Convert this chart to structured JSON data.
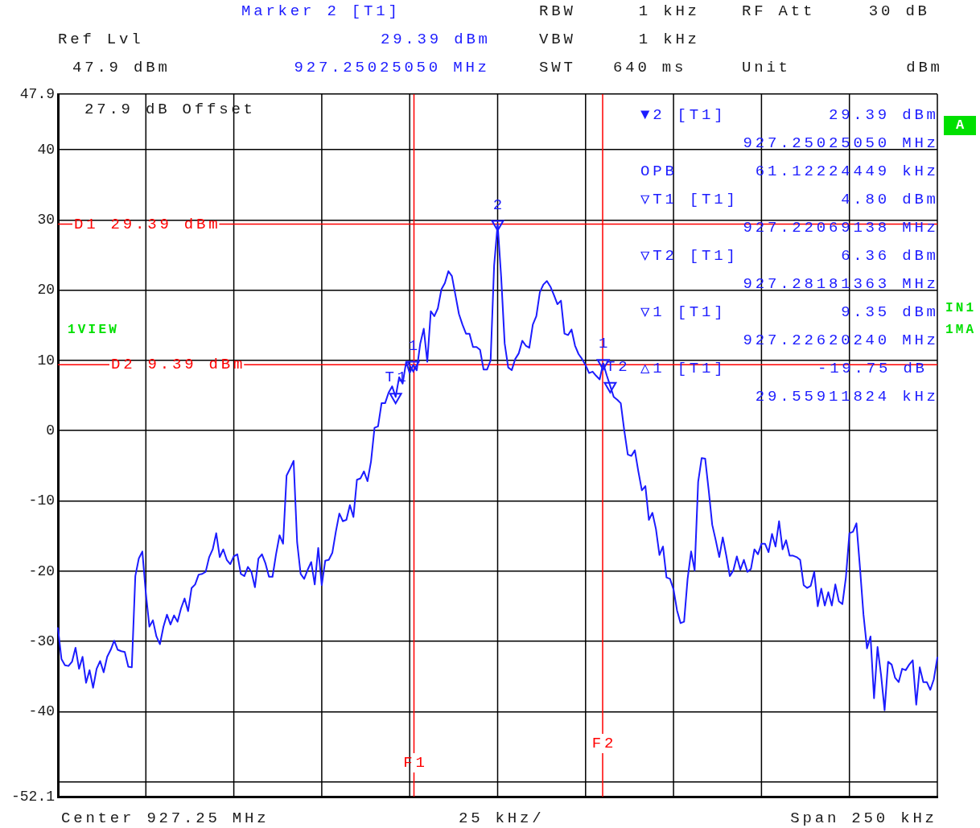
{
  "chart_data": {
    "type": "line",
    "categories": [
      null,
      null,
      null,
      null,
      null,
      null,
      null,
      null,
      null,
      null,
      null,
      null,
      null,
      null,
      null,
      null,
      null,
      null,
      null,
      null,
      null,
      null,
      null,
      null,
      null,
      null,
      null,
      null,
      null,
      null,
      null,
      null,
      null,
      null,
      null,
      null,
      null,
      null,
      null,
      null,
      null,
      null,
      null,
      null,
      null,
      null,
      null,
      null,
      null,
      null,
      null,
      null,
      null,
      null,
      null,
      null,
      null,
      null,
      null,
      null,
      null,
      null,
      null,
      null,
      null,
      null,
      null,
      null,
      null,
      null,
      null,
      null,
      null,
      null,
      null,
      null,
      null,
      null,
      null,
      null,
      null,
      null,
      null,
      null,
      null,
      null,
      null,
      null,
      null,
      null,
      null,
      null,
      null,
      null,
      null,
      null,
      null,
      null,
      null,
      null,
      null,
      null,
      null,
      null,
      null,
      null,
      null,
      null,
      null,
      null,
      null,
      null,
      null,
      null,
      null,
      null,
      null,
      null,
      null,
      null,
      null,
      null,
      null,
      null,
      null,
      null,
      null,
      null,
      null,
      null,
      null,
      null,
      null,
      null,
      null,
      null,
      null,
      null,
      null,
      null,
      null,
      null,
      null,
      null,
      null,
      null,
      null,
      null,
      null,
      null,
      null,
      null,
      null,
      null,
      null,
      null,
      null,
      null,
      null,
      null,
      null,
      null,
      null,
      null,
      null,
      null,
      null,
      null,
      null,
      null,
      null,
      null,
      null,
      null,
      null,
      null,
      null,
      null,
      null,
      null,
      null,
      null,
      null,
      null,
      null,
      null,
      null,
      null,
      null,
      null,
      null,
      null,
      null,
      null,
      null,
      null,
      null,
      null,
      null,
      null,
      null,
      null,
      null,
      null,
      null,
      null,
      null,
      null,
      null,
      null,
      null,
      null,
      null,
      null,
      null,
      null,
      null,
      null,
      null,
      null,
      null,
      null,
      null,
      null,
      null,
      null,
      null,
      null,
      null,
      null,
      null,
      null,
      null,
      null,
      null,
      null,
      null,
      null,
      null,
      null,
      null,
      null,
      null,
      null,
      null,
      null,
      null,
      null,
      null,
      null,
      null
    ],
    "series": [
      {
        "type": "line",
        "color": "#1c1cff",
        "values": [
          -28.1,
          -32.5,
          -33.4,
          -33.5,
          -32.9,
          -30.9,
          -33.9,
          -32.2,
          -35.9,
          -34.1,
          -36.6,
          -33.9,
          -32.8,
          -34.4,
          -32.2,
          -31.2,
          -29.9,
          -31.2,
          -31.4,
          -31.5,
          -33.6,
          -33.7,
          -20.7,
          -18.2,
          -17.2,
          -23.2,
          -27.9,
          -27.0,
          -29.3,
          -30.4,
          -27.9,
          -26.2,
          -27.6,
          -26.3,
          -27.2,
          -25.3,
          -23.9,
          -25.7,
          -22.4,
          -21.9,
          -20.5,
          -20.4,
          -20.1,
          -18.0,
          -16.9,
          -14.6,
          -18.0,
          -16.9,
          -18.4,
          -19.0,
          -17.9,
          -17.6,
          -20.4,
          -20.7,
          -19.4,
          -20.1,
          -22.3,
          -18.2,
          -17.6,
          -18.9,
          -20.8,
          -20.8,
          -17.6,
          -14.9,
          -16.1,
          -6.4,
          -5.4,
          -4.3,
          -15.9,
          -20.4,
          -21.1,
          -19.8,
          -18.7,
          -21.9,
          -16.7,
          -22.0,
          -18.5,
          -18.4,
          -17.4,
          -14.4,
          -11.8,
          -12.9,
          -12.7,
          -10.6,
          -12.3,
          -7.0,
          -6.8,
          -5.8,
          -7.2,
          -4.4,
          0.4,
          0.6,
          3.9,
          3.9,
          5.4,
          6.3,
          4.8,
          7.6,
          6.7,
          9.8,
          8.2,
          9.35,
          8.6,
          12.4,
          14.5,
          9.8,
          17.0,
          16.3,
          17.4,
          20.1,
          21.0,
          22.7,
          22.0,
          19.3,
          16.6,
          15.1,
          13.8,
          13.8,
          11.9,
          11.9,
          11.5,
          8.7,
          8.7,
          10.0,
          23.5,
          29.39,
          21.9,
          12.4,
          9.0,
          8.6,
          10.2,
          11.0,
          12.8,
          12.1,
          11.8,
          15.1,
          16.3,
          19.7,
          20.8,
          21.3,
          20.5,
          19.3,
          18.0,
          18.5,
          13.8,
          13.6,
          14.4,
          12.1,
          10.9,
          10.2,
          9.3,
          8.2,
          8.4,
          7.8,
          7.3,
          9.6,
          7.9,
          6.36,
          4.8,
          4.4,
          3.9,
          0.0,
          -3.4,
          -3.6,
          -2.8,
          -5.8,
          -8.5,
          -7.9,
          -12.7,
          -11.7,
          -14.0,
          -17.7,
          -16.5,
          -20.9,
          -21.1,
          -22.6,
          -25.6,
          -27.4,
          -27.2,
          -21.1,
          -17.2,
          -19.9,
          -7.3,
          -3.9,
          -4.0,
          -8.5,
          -13.4,
          -15.6,
          -18.0,
          -15.2,
          -17.8,
          -20.7,
          -19.9,
          -17.9,
          -19.8,
          -18.4,
          -20.1,
          -19.7,
          -16.9,
          -17.6,
          -16.1,
          -16.1,
          -17.3,
          -14.7,
          -16.5,
          -12.9,
          -16.9,
          -15.6,
          -17.8,
          -17.8,
          -18.0,
          -18.4,
          -22.0,
          -22.4,
          -22.1,
          -20.1,
          -25.0,
          -22.5,
          -24.9,
          -23.0,
          -24.9,
          -21.9,
          -24.3,
          -24.7,
          -20.9,
          -14.6,
          -14.4,
          -13.2,
          -19.5,
          -26.2,
          -31.0,
          -29.3,
          -38.1,
          -30.8,
          -34.8,
          -39.8,
          -32.9,
          -33.3,
          -35.2,
          -35.8,
          -33.9,
          -34.1,
          -33.3,
          -32.7,
          -39.0,
          -33.7,
          -35.8,
          -35.8,
          -36.9,
          -35.4,
          -32.3
        ]
      },
      {
        "type": "scatter",
        "color": "#1c1cff",
        "marker": "triangle",
        "values": [
          null,
          null,
          null,
          null,
          null,
          null,
          null,
          null,
          null,
          null,
          null,
          null,
          null,
          null,
          null,
          null,
          null,
          null,
          null,
          null,
          null,
          null,
          null,
          null,
          null,
          null,
          null,
          null,
          null,
          null,
          null,
          null,
          null,
          null,
          null,
          null,
          null,
          null,
          null,
          null,
          null,
          null,
          null,
          null,
          null,
          null,
          null,
          null,
          null,
          null,
          null,
          null,
          null,
          null,
          null,
          null,
          null,
          null,
          null,
          null,
          null,
          null,
          null,
          null,
          null,
          null,
          null,
          null,
          null,
          null,
          null,
          null,
          null,
          null,
          null,
          null,
          null,
          null,
          null,
          null,
          null,
          null,
          null,
          null,
          null,
          null,
          null,
          null,
          null,
          null,
          null,
          null,
          null,
          null,
          null,
          null,
          4.8,
          null,
          null,
          null,
          null,
          9.35,
          null,
          null,
          null,
          null,
          null,
          null,
          null,
          null,
          null,
          null,
          null,
          null,
          null,
          null,
          null,
          null,
          null,
          null,
          null,
          null,
          null,
          null,
          null,
          29.39,
          null,
          null,
          null,
          null,
          null,
          null,
          null,
          null,
          null,
          null,
          null,
          null,
          null,
          null,
          null,
          null,
          null,
          null,
          null,
          null,
          null,
          null,
          null,
          null,
          null,
          null,
          null,
          null,
          null,
          9.6,
          null,
          6.36,
          null,
          null,
          null,
          null,
          null,
          null,
          null,
          null,
          null,
          null,
          null,
          null,
          null,
          null,
          null,
          null,
          null,
          null,
          null,
          null,
          null,
          null,
          null,
          null,
          null,
          null,
          null,
          null,
          null,
          null,
          null,
          null,
          null,
          null,
          null,
          null,
          null,
          null,
          null,
          null,
          null,
          null,
          null,
          null,
          null,
          null,
          null,
          null,
          null,
          null,
          null,
          null,
          null,
          null,
          null,
          null,
          null,
          null,
          null,
          null,
          null,
          null,
          null,
          null,
          null,
          null,
          null,
          null,
          null,
          null,
          null,
          null,
          null,
          null,
          null,
          null,
          null,
          null,
          null,
          null,
          null,
          null,
          null,
          null,
          null,
          null,
          null,
          null,
          null,
          null,
          null,
          null,
          null
        ]
      }
    ],
    "ylim": [
      -52.1,
      47.9
    ],
    "yticks": [
      47.9,
      40,
      30,
      20,
      10,
      0,
      -10,
      -20,
      -30,
      -40,
      {
        "value": -50,
        "label": null
      },
      -52.1
    ],
    "tick_labels": "y",
    "grid": true,
    "ref_lines": [
      {
        "axis": "y",
        "value": 29.39,
        "label": "D1 29.39 dBm",
        "color": "#ff0000"
      },
      {
        "axis": "y",
        "value": 9.39,
        "label": "D2 9.39 dBm",
        "color": "#ff0000"
      }
    ],
    "annotations": [
      "Marker 2 [T1]",
      "RBW",
      "1 kHz",
      "RF Att",
      "30 dB",
      "Ref Lvl",
      "29.39 dBm",
      "VBW",
      "1 kHz",
      "47.9 dBm",
      "927.25025050 MHz",
      "SWT",
      "640 ms",
      "Unit",
      "dBm",
      "27.9 dB Offset",
      "▼2 [T1]",
      "29.39 dBm",
      "927.25025050 MHz",
      "OPB",
      "61.12224449 kHz",
      "▽T1 [T1]",
      "4.80 dBm",
      "927.22069138 MHz",
      "▽T2 [T1]",
      "6.36 dBm",
      "927.28181363 MHz",
      "▽1 [T1]",
      "9.35 dBm",
      "927.22620240 MHz",
      "△1 [T1]",
      "-19.75 dB",
      "29.55911824 kHz",
      "1VIEW",
      "A",
      "IN1",
      "1MA",
      "Center 927.25 MHz",
      "25 kHz/",
      "Span 250 kHz",
      "F1",
      "F2",
      {
        "text": "T1",
        "y": 4.8
      },
      {
        "text": "1",
        "y": 9.35
      },
      {
        "text": "2",
        "y": 29.39
      },
      {
        "text": "1",
        "y": 9.6
      },
      {
        "text": "T2",
        "y": 6.36
      }
    ]
  }
}
